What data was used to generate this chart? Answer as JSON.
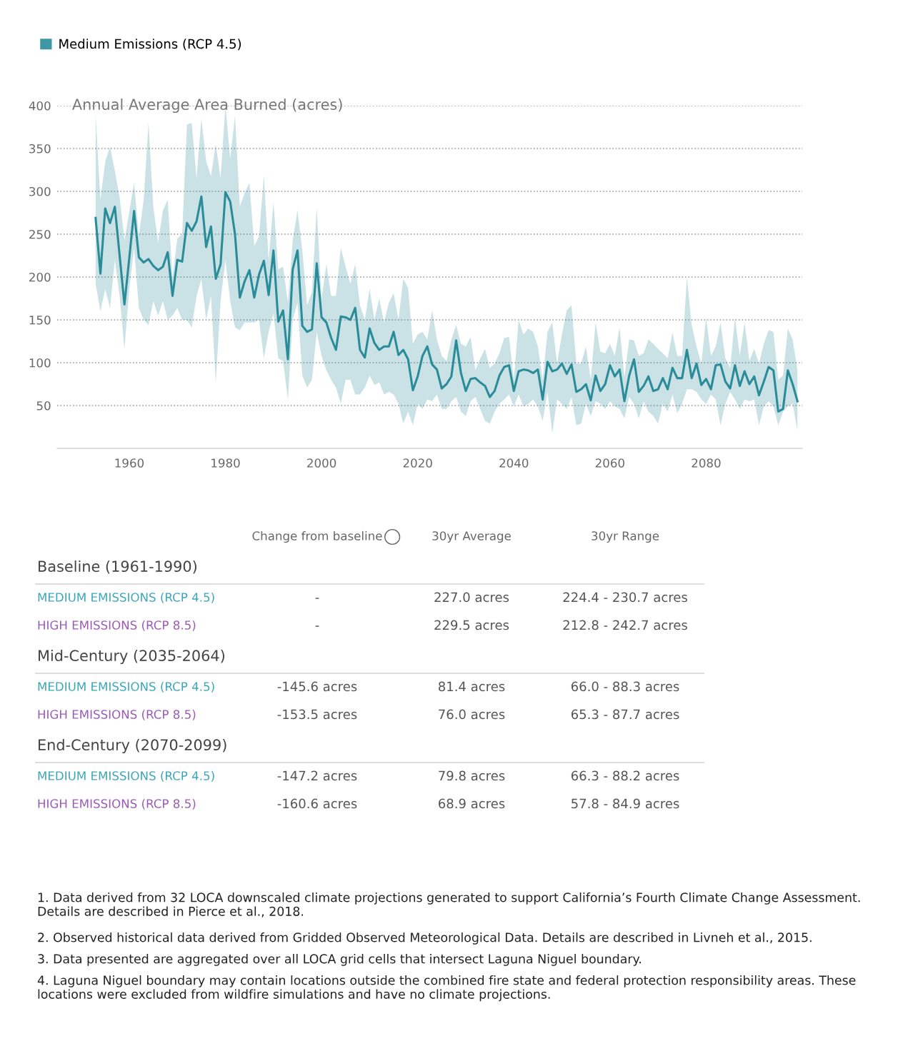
{
  "chart_data": {
    "type": "line",
    "ylabel": "Annual Average Area Burned (acres)",
    "xlim": [
      1945,
      2100
    ],
    "xticks": [
      1960,
      1980,
      2000,
      2020,
      2040,
      2060,
      2080
    ],
    "ylim": [
      0,
      400
    ],
    "yticks": [
      50,
      100,
      150,
      200,
      250,
      300,
      350,
      400
    ],
    "grid": "y",
    "legend": "top left",
    "line_style": "solid",
    "x": [
      1953,
      1954,
      1955,
      1956,
      1957,
      1958,
      1959,
      1960,
      1961,
      1962,
      1963,
      1964,
      1965,
      1966,
      1967,
      1968,
      1969,
      1970,
      1971,
      1972,
      1973,
      1974,
      1975,
      1976,
      1977,
      1978,
      1979,
      1980,
      1981,
      1982,
      1983,
      1984,
      1985,
      1986,
      1987,
      1988,
      1989,
      1990,
      1991,
      1992,
      1993,
      1994,
      1995,
      1996,
      1997,
      1998,
      1999,
      2000,
      2001,
      2002,
      2003,
      2004,
      2005,
      2006,
      2007,
      2008,
      2009,
      2010,
      2011,
      2012,
      2013,
      2014,
      2015,
      2016,
      2017,
      2018,
      2019,
      2020,
      2021,
      2022,
      2023,
      2024,
      2025,
      2026,
      2027,
      2028,
      2029,
      2030,
      2031,
      2032,
      2033,
      2034,
      2035,
      2036,
      2037,
      2038,
      2039,
      2040,
      2041,
      2042,
      2043,
      2044,
      2045,
      2046,
      2047,
      2048,
      2049,
      2050,
      2051,
      2052,
      2053,
      2054,
      2055,
      2056,
      2057,
      2058,
      2059,
      2060,
      2061,
      2062,
      2063,
      2064,
      2065,
      2066,
      2067,
      2068,
      2069,
      2070,
      2071,
      2072,
      2073,
      2074,
      2075,
      2076,
      2077,
      2078,
      2079,
      2080,
      2081,
      2082,
      2083,
      2084,
      2085,
      2086,
      2087,
      2088,
      2089,
      2090,
      2091,
      2092,
      2093,
      2094,
      2095,
      2096,
      2097,
      2098,
      2099
    ],
    "series": [
      {
        "name": "Medium Emissions (RCP 4.5)",
        "color": "#2a8c99",
        "values": [
          269,
          204,
          280,
          263,
          282,
          225,
          168,
          222,
          277,
          223,
          217,
          221,
          213,
          208,
          212,
          229,
          178,
          220,
          218,
          263,
          254,
          265,
          294,
          235,
          259,
          198,
          215,
          299,
          288,
          250,
          176,
          195,
          208,
          176,
          203,
          219,
          179,
          231,
          148,
          161,
          104,
          209,
          231,
          143,
          136,
          139,
          216,
          153,
          147,
          129,
          115,
          154,
          153,
          150,
          164,
          115,
          106,
          140,
          123,
          115,
          119,
          119,
          136,
          109,
          115,
          104,
          68,
          84,
          108,
          119,
          98,
          92,
          70,
          75,
          84,
          126,
          88,
          67,
          81,
          82,
          77,
          73,
          60,
          67,
          85,
          95,
          97,
          67,
          90,
          92,
          91,
          88,
          92,
          57,
          101,
          90,
          92,
          99,
          87,
          98,
          66,
          69,
          75,
          56,
          85,
          67,
          75,
          97,
          84,
          92,
          55,
          85,
          104,
          66,
          73,
          84,
          67,
          69,
          82,
          69,
          94,
          82,
          82,
          115,
          82,
          99,
          74,
          81,
          69,
          97,
          98,
          78,
          70,
          97,
          73,
          90,
          75,
          84,
          62,
          78,
          95,
          91,
          43,
          46,
          91,
          75,
          55
        ],
        "upper": [
          390,
          290,
          335,
          352,
          324,
          293,
          243,
          276,
          310,
          248,
          290,
          380,
          282,
          240,
          278,
          290,
          200,
          245,
          250,
          378,
          380,
          315,
          385,
          335,
          318,
          355,
          315,
          400,
          338,
          388,
          282,
          298,
          310,
          236,
          248,
          319,
          220,
          287,
          209,
          212,
          170,
          243,
          278,
          231,
          167,
          183,
          281,
          175,
          215,
          178,
          178,
          234,
          212,
          192,
          215,
          167,
          150,
          186,
          150,
          175,
          147,
          170,
          181,
          150,
          198,
          187,
          122,
          133,
          136,
          127,
          161,
          127,
          108,
          102,
          127,
          144,
          122,
          119,
          130,
          91,
          105,
          116,
          94,
          99,
          111,
          129,
          130,
          80,
          150,
          133,
          140,
          136,
          119,
          80,
          136,
          147,
          99,
          133,
          161,
          167,
          99,
          99,
          119,
          80,
          147,
          113,
          111,
          122,
          108,
          141,
          83,
          127,
          126,
          108,
          111,
          127,
          122,
          116,
          111,
          105,
          135,
          108,
          108,
          200,
          144,
          119,
          99,
          153,
          108,
          119,
          147,
          105,
          94,
          153,
          108,
          147,
          102,
          116,
          99,
          122,
          138,
          136,
          80,
          85,
          140,
          127,
          91
        ],
        "lower": [
          192,
          160,
          186,
          164,
          220,
          178,
          116,
          186,
          234,
          164,
          150,
          144,
          172,
          155,
          172,
          150,
          155,
          164,
          150,
          150,
          141,
          178,
          198,
          150,
          178,
          77,
          172,
          220,
          172,
          141,
          138,
          147,
          147,
          147,
          150,
          105,
          136,
          158,
          105,
          102,
          57,
          150,
          170,
          85,
          71,
          80,
          136,
          108,
          91,
          80,
          71,
          52,
          80,
          80,
          63,
          63,
          71,
          85,
          74,
          77,
          63,
          66,
          63,
          52,
          29,
          43,
          27,
          52,
          46,
          57,
          55,
          63,
          46,
          46,
          55,
          60,
          43,
          38,
          55,
          60,
          46,
          32,
          29,
          43,
          52,
          57,
          63,
          49,
          63,
          49,
          52,
          57,
          49,
          32,
          66,
          18,
          57,
          52,
          46,
          60,
          27,
          29,
          52,
          38,
          55,
          52,
          46,
          55,
          49,
          46,
          35,
          60,
          52,
          35,
          55,
          43,
          38,
          29,
          52,
          43,
          63,
          41,
          52,
          69,
          69,
          66,
          57,
          52,
          63,
          57,
          27,
          52,
          66,
          57,
          46,
          57,
          55,
          57,
          27,
          49,
          55,
          49,
          27,
          43,
          49,
          52,
          21
        ]
      }
    ],
    "annotations": [
      "\tChange from baseline\t30yr Average\t30yr Range",
      "Baseline (1961-1990)\t",
      "MEDIUM EMISSIONS (RCP 4.5)\t-\t227.0 acres\t224.4 - 230.7 acres",
      "HIGH EMISSIONS (RCP 8.5)\t-\t229.5 acres\t212.8 - 242.7 acres",
      "Mid-Century (2035-2064)\t",
      "MEDIUM EMISSIONS (RCP 4.5)\t-145.6 acres\t81.4 acres\t66.0 - 88.3 acres",
      "HIGH EMISSIONS (RCP 8.5)\t-153.5 acres\t76.0 acres\t65.3 - 87.7 acres",
      "End-Century (2070-2099)\t",
      "MEDIUM EMISSIONS (RCP 4.5)\t-147.2 acres\t79.8 acres\t66.3 - 88.2 acres",
      "HIGH EMISSIONS (RCP 8.5)\t-160.6 acres\t68.9 acres\t57.8 - 84.9 acres",
      "1. Data derived from 32 LOCA downscaled climate projections generated to support California’s Fourth Climate Change Assessment. Details are described in Pierce et al., 2018.",
      "2. Observed historical data derived from Gridded Observed Meteorological Data. Details are described in Livneh et al., 2015.",
      "3. Data presented are aggregated over all LOCA grid cells that intersect Laguna Niguel boundary.",
      "4. Laguna Niguel boundary may contain locations outside the combined fire state and federal protection responsibility areas. These locations were excluded from wildfire simulations and have no climate projections."
    ]
  }
}
